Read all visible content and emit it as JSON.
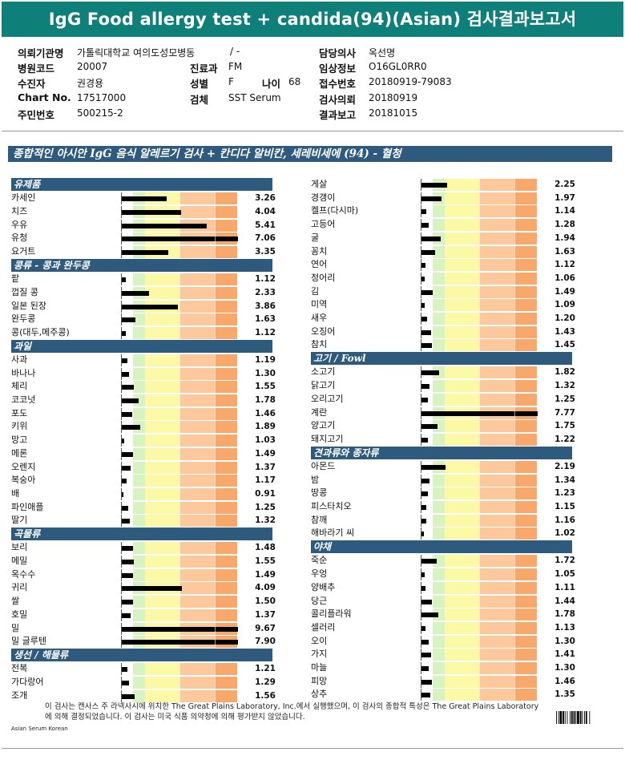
{
  "title": "IgG Food allergy test + candida(94)(Asian) 검사결과보고서",
  "patient_info": {
    "institution_label": "의뢰기관명",
    "institution": "가톨릭대학교 여의도성모병동",
    "institution_extra": "/ -",
    "hospital_code_label": "병원코드",
    "hospital_code": "20007",
    "collector_label": "수진자",
    "collector": "권경용",
    "chart_label": "Chart No.",
    "chart": "17517000",
    "resident_label": "주민번호",
    "resident": "500215-2",
    "dept_label": "진료과",
    "dept": "FM",
    "sex_label": "성별",
    "sex": "F",
    "age_label": "나이",
    "age": "68",
    "specimen_label": "검체",
    "specimen": "SST Serum",
    "doctor_label": "담당의사",
    "doctor": "옥선명",
    "clinical_label": "임상정보",
    "clinical": "O16GL0RR0",
    "receipt_label": "접수번호",
    "receipt": "20180919-79083",
    "request_label": "검사의뢰",
    "request": "20180919",
    "report_label": "결과보고",
    "report": "20181015"
  },
  "report_heading": "종합적인 아시안 IgG 음식 알레르기 검사 + 칸디다 알비칸, 세레비세에 (94) - 혈청",
  "colors": {
    "header": "#0f7f7a",
    "category": "#2e5a7e"
  },
  "chart_data": {
    "type": "bar",
    "scale_max": 7.06,
    "columns": [
      {
        "sections": [
          {
            "name": "유제품",
            "items": [
              {
                "label": "카세인",
                "value": 3.26
              },
              {
                "label": "치즈",
                "value": 4.04
              },
              {
                "label": "우유",
                "value": 5.41
              },
              {
                "label": "유청",
                "value": 7.06
              },
              {
                "label": "요거트",
                "value": 3.35
              }
            ]
          },
          {
            "name": "콩류 - 콩과 완두콩",
            "items": [
              {
                "label": "팥",
                "value": 1.12
              },
              {
                "label": "껍질 콩",
                "value": 2.33
              },
              {
                "label": "일본 된장",
                "value": 3.86
              },
              {
                "label": "완두콩",
                "value": 1.63
              },
              {
                "label": "콩(대두,메주콩)",
                "value": 1.12
              }
            ]
          },
          {
            "name": "과일",
            "items": [
              {
                "label": "사과",
                "value": 1.19
              },
              {
                "label": "바나나",
                "value": 1.3
              },
              {
                "label": "체리",
                "value": 1.55
              },
              {
                "label": "코코넛",
                "value": 1.78
              },
              {
                "label": "포도",
                "value": 1.46
              },
              {
                "label": "키위",
                "value": 1.89
              },
              {
                "label": "망고",
                "value": 1.03
              },
              {
                "label": "메론",
                "value": 1.49
              },
              {
                "label": "오렌지",
                "value": 1.37
              },
              {
                "label": "복숭아",
                "value": 1.17
              },
              {
                "label": "배",
                "value": 0.91
              },
              {
                "label": "파인애플",
                "value": 1.25
              },
              {
                "label": "딸기",
                "value": 1.32
              }
            ]
          },
          {
            "name": "곡물류",
            "items": [
              {
                "label": "보리",
                "value": 1.48
              },
              {
                "label": "메밀",
                "value": 1.55
              },
              {
                "label": "옥수수",
                "value": 1.49
              },
              {
                "label": "귀리",
                "value": 4.09
              },
              {
                "label": "쌀",
                "value": 1.5
              },
              {
                "label": "호밀",
                "value": 1.37
              },
              {
                "label": "밀",
                "value": 9.67
              },
              {
                "label": "밀 글루텐",
                "value": 7.9
              }
            ]
          },
          {
            "name": "생선 / 해물류",
            "items": [
              {
                "label": "전복",
                "value": 1.21
              },
              {
                "label": "가다랑어",
                "value": 1.29
              },
              {
                "label": "조개",
                "value": 1.56
              }
            ]
          }
        ]
      },
      {
        "sections": [
          {
            "name": "",
            "items": [
              {
                "label": "게살",
                "value": 2.25
              },
              {
                "label": "경갱이",
                "value": 1.97
              },
              {
                "label": "켈프(다시마)",
                "value": 1.14
              },
              {
                "label": "고등어",
                "value": 1.28
              },
              {
                "label": "굴",
                "value": 1.94
              },
              {
                "label": "꽁치",
                "value": 1.63
              },
              {
                "label": "연어",
                "value": 1.12
              },
              {
                "label": "정어리",
                "value": 1.06
              },
              {
                "label": "김",
                "value": 1.49
              },
              {
                "label": "미역",
                "value": 1.09
              },
              {
                "label": "새우",
                "value": 1.2
              },
              {
                "label": "오징어",
                "value": 1.43
              },
              {
                "label": "참치",
                "value": 1.45
              }
            ]
          },
          {
            "name": "고기 / Fowl",
            "items": [
              {
                "label": "소고기",
                "value": 1.82
              },
              {
                "label": "닭고기",
                "value": 1.32
              },
              {
                "label": "오리고기",
                "value": 1.25
              },
              {
                "label": "계란",
                "value": 7.77
              },
              {
                "label": "양고기",
                "value": 1.75
              },
              {
                "label": "돼지고기",
                "value": 1.22
              }
            ]
          },
          {
            "name": "견과류와 종자류",
            "items": [
              {
                "label": "아몬드",
                "value": 2.19
              },
              {
                "label": "밤",
                "value": 1.34
              },
              {
                "label": "땅콩",
                "value": 1.23
              },
              {
                "label": "피스타치오",
                "value": 1.15
              },
              {
                "label": "참깨",
                "value": 1.16
              },
              {
                "label": "해바라기 씨",
                "value": 1.02
              }
            ]
          },
          {
            "name": "야채",
            "items": [
              {
                "label": "죽순",
                "value": 1.72
              },
              {
                "label": "우엉",
                "value": 1.05
              },
              {
                "label": "양배추",
                "value": 1.11
              },
              {
                "label": "당근",
                "value": 1.44
              },
              {
                "label": "콜리플라워",
                "value": 1.78
              },
              {
                "label": "셀러리",
                "value": 1.13
              },
              {
                "label": "오이",
                "value": 1.3
              },
              {
                "label": "가지",
                "value": 1.41
              },
              {
                "label": "마늘",
                "value": 1.3
              },
              {
                "label": "피망",
                "value": 1.46
              },
              {
                "label": "상추",
                "value": 1.35
              }
            ]
          }
        ]
      }
    ]
  },
  "footnote": "이 검사는 캔사스 주 라넥사시에 위치한 The Great Plains Laboratory, Inc.에서 실행했으며, 이 검사의 종합적 특성은 The Great Plains Laboratory에 의해 결정되었습니다. 이 검사는 미국 식품 의약청에 의해 평가받지 않았습니다.",
  "lab_tag": "Asian Serum Korean"
}
